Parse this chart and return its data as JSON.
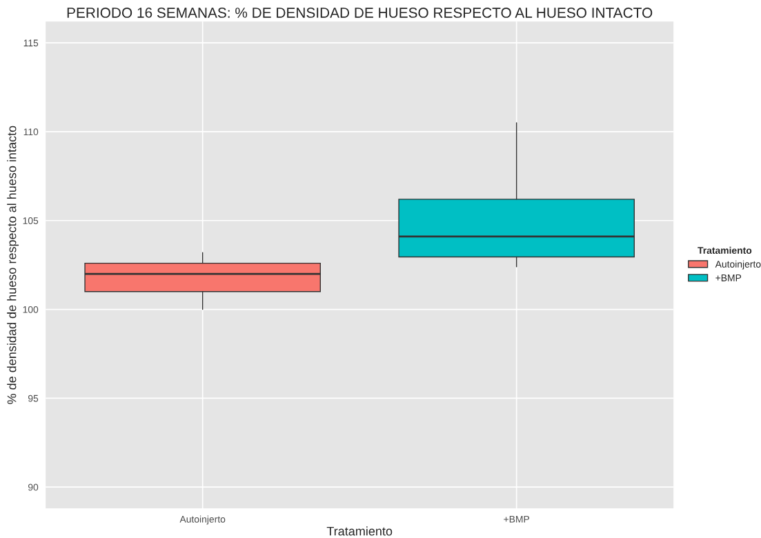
{
  "chart_data": {
    "type": "box",
    "title": "PERIODO 16 SEMANAS: % DE DENSIDAD DE HUESO RESPECTO AL HUESO INTACTO",
    "xlabel": "Tratamiento",
    "ylabel": "% de densidad de hueso respecto al hueso intacto",
    "legend_title": "Tratamiento",
    "categories": [
      "Autoinjerto",
      "+BMP"
    ],
    "series": [
      {
        "name": "Autoinjerto",
        "color": "#f8766d",
        "boxes": [
          {
            "low": 100.0,
            "q1": 101.0,
            "median": 102.0,
            "q3": 102.6,
            "high": 103.2
          },
          null
        ]
      },
      {
        "name": "+BMP",
        "color": "#00bfc4",
        "boxes": [
          null,
          {
            "low": 102.4,
            "q1": 102.95,
            "median": 104.1,
            "q3": 106.2,
            "high": 110.5
          }
        ]
      }
    ],
    "ylim": [
      88.8,
      116.2
    ],
    "yticks": [
      90,
      95,
      100,
      105,
      110,
      115
    ],
    "grid": true,
    "legend": "right"
  }
}
